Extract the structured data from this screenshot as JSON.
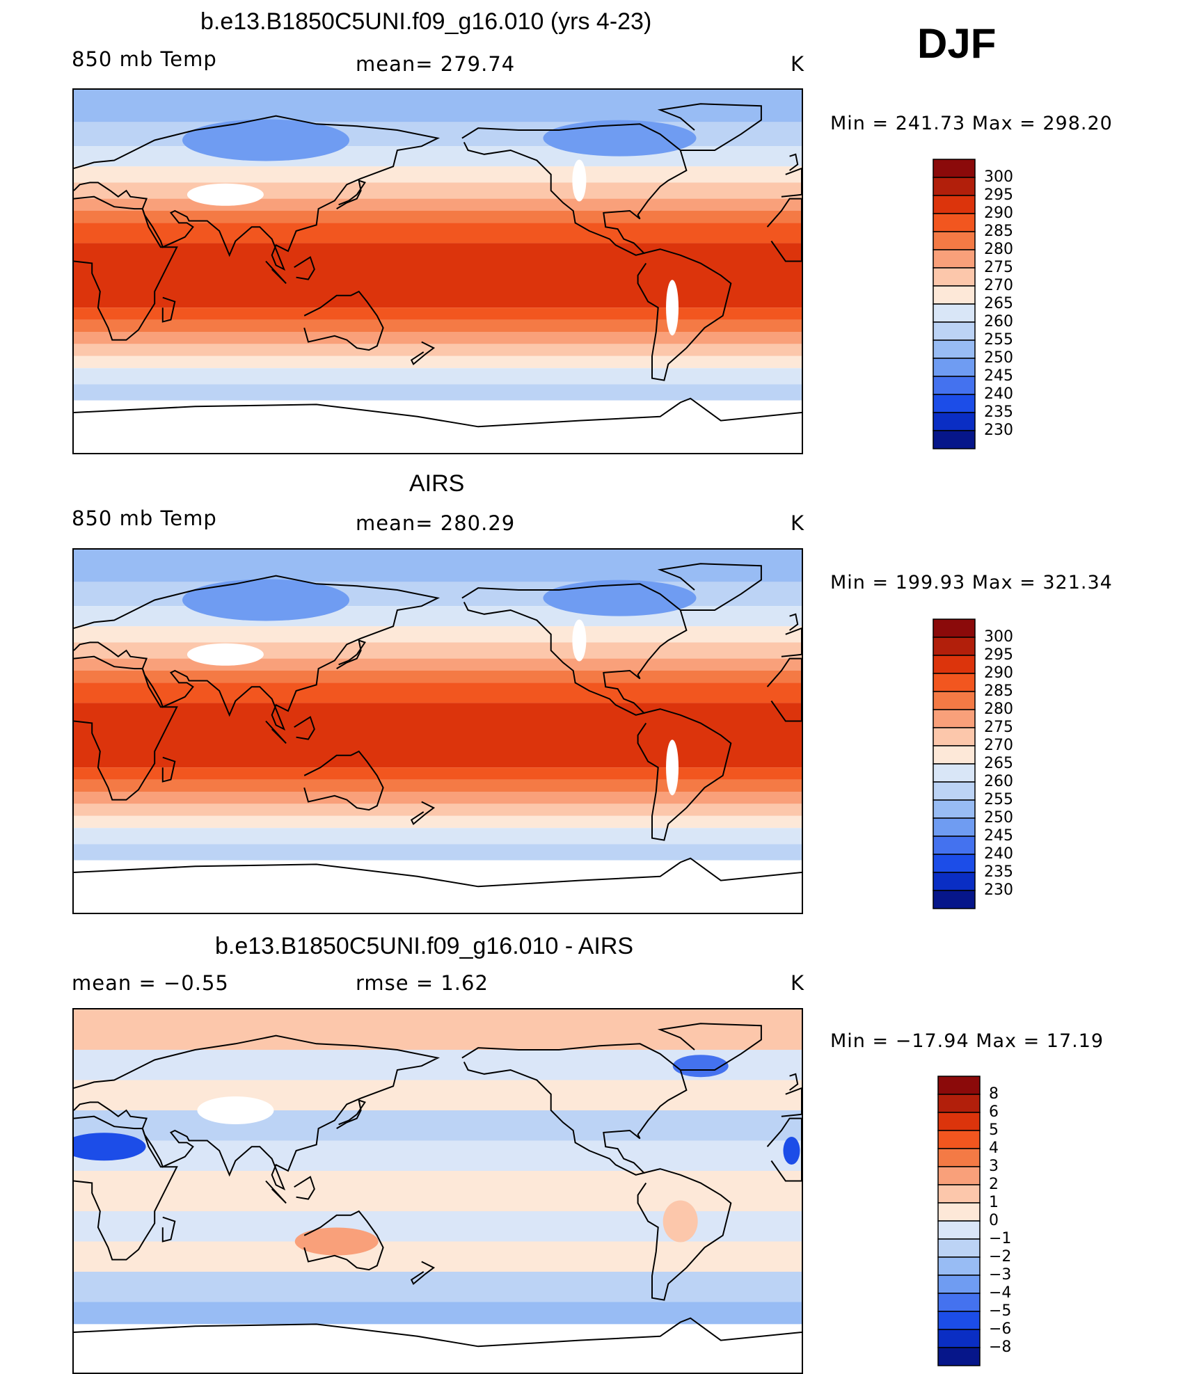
{
  "season": "DJF",
  "panels": [
    {
      "id": "model",
      "title": "b.e13.B1850C5UNI.f09_g16.010 (yrs 4-23)",
      "left_label": "850 mb Temp",
      "center_label": "mean= 279.74",
      "units": "K",
      "minmax": "Min = 241.73 Max = 298.20",
      "field": "temp",
      "colorbar": {
        "labels": [
          "300",
          "295",
          "290",
          "285",
          "280",
          "275",
          "270",
          "265",
          "260",
          "255",
          "250",
          "245",
          "240",
          "235",
          "230"
        ],
        "colors": [
          "#8b0a0a",
          "#b21f0b",
          "#dc340c",
          "#f2561f",
          "#f47a45",
          "#f9a07a",
          "#fcc7ab",
          "#fde8d8",
          "#d9e6f7",
          "#bcd3f5",
          "#98bcf4",
          "#6f9cf2",
          "#4472ef",
          "#1c4de8",
          "#0a2ec4",
          "#06168a"
        ]
      }
    },
    {
      "id": "obs",
      "title": "AIRS",
      "left_label": "850 mb Temp",
      "center_label": "mean= 280.29",
      "units": "K",
      "minmax": "Min = 199.93 Max = 321.34",
      "field": "temp",
      "colorbar": {
        "labels": [
          "300",
          "295",
          "290",
          "285",
          "280",
          "275",
          "270",
          "265",
          "260",
          "255",
          "250",
          "245",
          "240",
          "235",
          "230"
        ],
        "colors": [
          "#8b0a0a",
          "#b21f0b",
          "#dc340c",
          "#f2561f",
          "#f47a45",
          "#f9a07a",
          "#fcc7ab",
          "#fde8d8",
          "#d9e6f7",
          "#bcd3f5",
          "#98bcf4",
          "#6f9cf2",
          "#4472ef",
          "#1c4de8",
          "#0a2ec4",
          "#06168a"
        ]
      }
    },
    {
      "id": "diff",
      "title": "b.e13.B1850C5UNI.f09_g16.010 - AIRS",
      "left_label": "mean =   −0.55",
      "center_label": "rmse =    1.62",
      "units": "K",
      "minmax": "Min = −17.94 Max =   17.19",
      "field": "diff",
      "colorbar": {
        "labels": [
          "8",
          "6",
          "5",
          "4",
          "3",
          "2",
          "1",
          "0",
          "−1",
          "−2",
          "−3",
          "−4",
          "−5",
          "−6",
          "−8"
        ],
        "colors": [
          "#8b0a0a",
          "#b21f0b",
          "#dc340c",
          "#f2561f",
          "#f47a45",
          "#f9a07a",
          "#fcc7ab",
          "#fde8d8",
          "#dae6f8",
          "#bcd3f5",
          "#98bcf4",
          "#6f9cf2",
          "#4472ef",
          "#1c4de8",
          "#0a2ec4",
          "#06168a"
        ]
      }
    }
  ]
}
